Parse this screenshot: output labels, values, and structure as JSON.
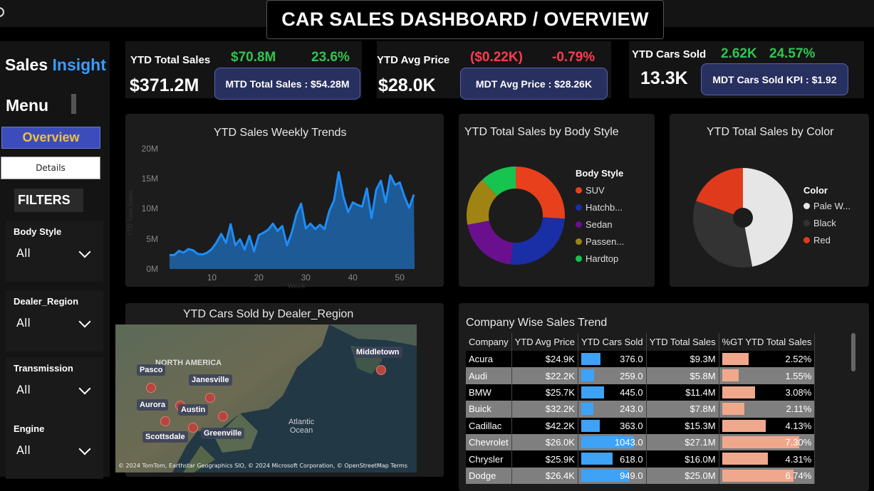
{
  "title": "CAR SALES DASHBOARD / OVERVIEW",
  "sidebar": {
    "brand_part1": "Sales",
    "brand_part2": "Insight",
    "menu": "Menu",
    "overview": "Overview",
    "details": "Details",
    "filters": "FILTERS",
    "filter_list": [
      {
        "label": "Body Style",
        "value": "All"
      },
      {
        "label": "Dealer_Region",
        "value": "All"
      },
      {
        "label": "Transmission",
        "value": "All"
      },
      {
        "label": "Engine",
        "value": "All"
      }
    ]
  },
  "kpis": {
    "sales": {
      "label": "YTD Total Sales",
      "value": "$371.2M",
      "mtd": "$70.8M",
      "change": "23.6%",
      "pill": "MTD Total Sales : $54.28M"
    },
    "price": {
      "label": "YTD Avg Price",
      "value": "$28.0K",
      "mtd": "($0.22K)",
      "change": "-0.79%",
      "pill": "MDT Avg Price : $28.26K"
    },
    "cars": {
      "label": "YTD Cars Sold",
      "value": "13.3K",
      "mtd": "2.62K",
      "change": "24.57%",
      "pill": "MDT Cars Sold KPI : $1.92"
    }
  },
  "weekly": {
    "title": "YTD Sales Weekly Trends",
    "xlabel": "Week",
    "ylabel": "YTD Total Sales",
    "y_ticks": [
      "0M",
      "5M",
      "10M",
      "15M",
      "20M"
    ],
    "x_ticks": [
      "10",
      "20",
      "30",
      "40",
      "50"
    ]
  },
  "body_style": {
    "title": "YTD Total Sales by Body Style",
    "legend_title": "Body Style",
    "labels": [
      "SUV",
      "Hatchb...",
      "Sedan",
      "Passen...",
      "Hardtop"
    ]
  },
  "color_chart": {
    "title": "YTD Total Sales by Color",
    "legend_title": "Color",
    "labels": [
      "Pale W...",
      "Black",
      "Red"
    ]
  },
  "map": {
    "title": "YTD Cars Sold by Dealer_Region",
    "cities": [
      "Pasco",
      "Janesville",
      "Aurora",
      "Austin",
      "Scottsdale",
      "Greenville",
      "Middletown"
    ],
    "region": "NORTH AMERICA",
    "ocean_line1": "Atlantic",
    "ocean_line2": "Ocean",
    "credit": "© 2024 TomTom, Earthstar Geographics SIO, © 2024 Microsoft Corporation, © OpenStreetMap  Terms"
  },
  "company": {
    "title": "Company Wise Sales Trend",
    "headers": [
      "Company",
      "YTD Avg Price",
      "YTD Cars Sold",
      "YTD Total Sales",
      "%GT YTD Total Sales"
    ],
    "rows": [
      {
        "company": "Acura",
        "avg": "$24.9K",
        "sold": "376.0",
        "total": "$9.3M",
        "pct": "2.52%"
      },
      {
        "company": "Audi",
        "avg": "$22.2K",
        "sold": "259.0",
        "total": "$5.8M",
        "pct": "1.55%"
      },
      {
        "company": "BMW",
        "avg": "$25.7K",
        "sold": "445.0",
        "total": "$11.4M",
        "pct": "3.08%"
      },
      {
        "company": "Buick",
        "avg": "$32.2K",
        "sold": "243.0",
        "total": "$7.8M",
        "pct": "2.11%"
      },
      {
        "company": "Cadillac",
        "avg": "$42.2K",
        "sold": "363.0",
        "total": "$15.3M",
        "pct": "4.13%"
      },
      {
        "company": "Chevrolet",
        "avg": "$26.0K",
        "sold": "1043.0",
        "total": "$27.1M",
        "pct": "7.30%"
      },
      {
        "company": "Chrysler",
        "avg": "$25.9K",
        "sold": "618.0",
        "total": "$16.0M",
        "pct": "4.31%"
      },
      {
        "company": "Dodge",
        "avg": "$26.4K",
        "sold": "949.0",
        "total": "$25.0M",
        "pct": "6.74%"
      }
    ]
  },
  "colors": {
    "accent_blue": "#3b9cff",
    "green": "#31c451",
    "red": "#ff3b4e",
    "suv": "#e8401c",
    "hatchback": "#1a2ea6",
    "sedan": "#6a0f8e",
    "passenger": "#a08413",
    "hardtop": "#17c450",
    "pale_white": "#e6e6e6",
    "black": "#333333",
    "red_color": "#e03a1c",
    "sold_bar": "#3ea2f7",
    "pct_bar": "#f0a88c"
  },
  "chart_data": [
    {
      "type": "area",
      "title": "YTD Sales Weekly Trends",
      "xlabel": "Week",
      "ylabel": "YTD Total Sales",
      "ylim": [
        0,
        20
      ],
      "xlim": [
        1,
        53
      ],
      "x": [
        1,
        2,
        3,
        4,
        5,
        6,
        7,
        8,
        9,
        10,
        11,
        12,
        13,
        14,
        15,
        16,
        17,
        18,
        19,
        20,
        21,
        22,
        23,
        24,
        25,
        26,
        27,
        28,
        29,
        30,
        31,
        32,
        33,
        34,
        35,
        36,
        37,
        38,
        39,
        40,
        41,
        42,
        43,
        44,
        45,
        46,
        47,
        48,
        49,
        50,
        51,
        52,
        53
      ],
      "values": [
        2.3,
        2.3,
        3.0,
        2.7,
        3.3,
        3.1,
        2.5,
        2.4,
        2.7,
        3.3,
        4.4,
        5.8,
        4.3,
        7.4,
        3.9,
        4.9,
        3.2,
        5.5,
        2.9,
        5.6,
        6.0,
        6.5,
        7.5,
        6.3,
        7.1,
        3.9,
        6.0,
        9.0,
        10.8,
        6.7,
        7.5,
        6.6,
        7.3,
        6.6,
        9.6,
        11.3,
        16.0,
        12.0,
        9.4,
        11.0,
        10.6,
        10.3,
        13.3,
        8.4,
        13.1,
        14.6,
        11.0,
        15.5,
        13.9,
        14.3,
        12.0,
        10.1,
        12.3
      ]
    },
    {
      "type": "pie",
      "title": "YTD Total Sales by Body Style",
      "categories": [
        "SUV",
        "Hatchback",
        "Sedan",
        "Passenger",
        "Hardtop"
      ],
      "values": [
        26.0,
        25.6,
        20.4,
        16.0,
        12.0
      ]
    },
    {
      "type": "pie",
      "title": "YTD Total Sales by Color",
      "categories": [
        "Pale White",
        "Black",
        "Red"
      ],
      "values": [
        47.0,
        33.5,
        19.5
      ]
    }
  ]
}
